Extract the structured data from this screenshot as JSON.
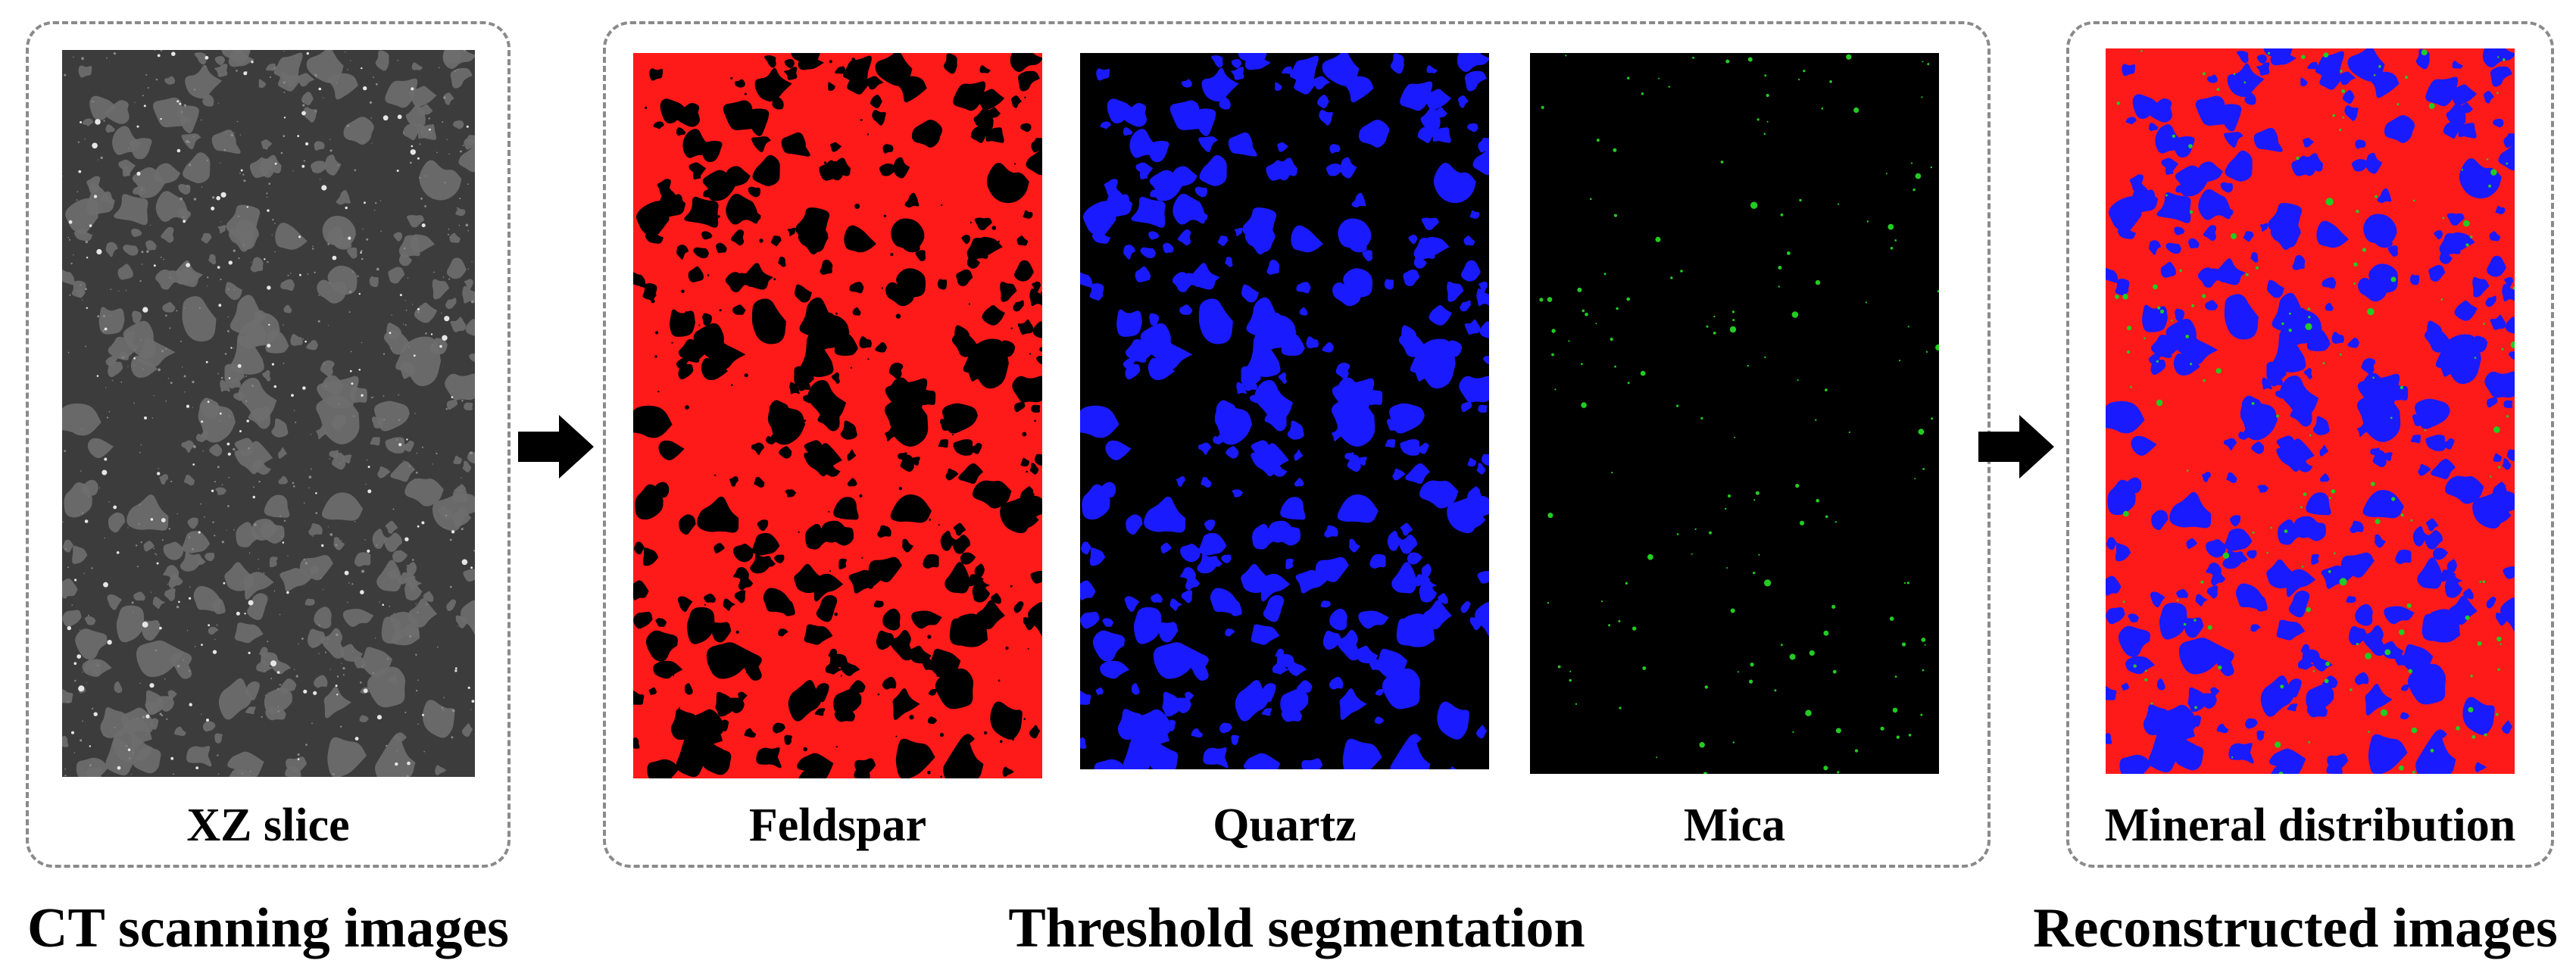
{
  "groups": {
    "ct": {
      "caption": "CT scanning images",
      "panel_label": "XZ slice"
    },
    "threshold": {
      "caption": "Threshold segmentation",
      "panels": [
        {
          "label": "Feldspar",
          "color": "#ff1a1a",
          "background": "#000000"
        },
        {
          "label": "Quartz",
          "color": "#1a1aff",
          "background": "#000000"
        },
        {
          "label": "Mica",
          "color": "#22cc22",
          "background": "#000000"
        }
      ]
    },
    "recon": {
      "caption": "Reconstructed images",
      "panel_label": "Mineral distribution"
    }
  },
  "colors": {
    "feldspar": "#ff1a1a",
    "quartz": "#1a1aff",
    "mica": "#22cc22",
    "ct_background": "#3c3c3c",
    "ct_grain": "#6e6e6e",
    "ct_bright": "#e6e6e6",
    "box_border": "#8a8a8a",
    "arrow": "#000000"
  }
}
